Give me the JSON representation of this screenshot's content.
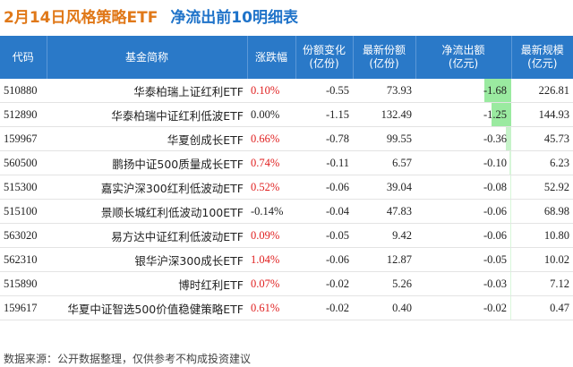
{
  "title": "2月14日风格策略ETF",
  "subtitle": "净流出前10明细表",
  "footer": "数据来源：公开数据整理，仅供参考不构成投资建议",
  "colors": {
    "title": "#e07818",
    "subtitle": "#1f73c9",
    "header_bg": "#2a79c8",
    "positive": "#e02020",
    "bar": "#9aeaa0"
  },
  "chart_data": {
    "type": "table",
    "columns": [
      "代码",
      "基金简称",
      "涨跌幅",
      "份额变化\n(亿份)",
      "最新份额\n(亿份)",
      "净流出额\n(亿元)",
      "最新规模\n(亿元)"
    ],
    "bar_column_max": 1.68,
    "rows": [
      {
        "code": "510880",
        "name": "华泰柏瑞上证红利ETF",
        "change": "0.10%",
        "change_sign": 1,
        "share_change": "-0.55",
        "shares": "73.93",
        "outflow": "-1.68",
        "outflow_value": -1.68,
        "aum": "226.81"
      },
      {
        "code": "512890",
        "name": "华泰柏瑞中证红利低波ETF",
        "change": "0.00%",
        "change_sign": 0,
        "share_change": "-1.15",
        "shares": "132.49",
        "outflow": "-1.25",
        "outflow_value": -1.25,
        "aum": "144.93"
      },
      {
        "code": "159967",
        "name": "华夏创成长ETF",
        "change": "0.66%",
        "change_sign": 1,
        "share_change": "-0.78",
        "shares": "99.55",
        "outflow": "-0.36",
        "outflow_value": -0.36,
        "aum": "45.73"
      },
      {
        "code": "560500",
        "name": "鹏扬中证500质量成长ETF",
        "change": "0.74%",
        "change_sign": 1,
        "share_change": "-0.11",
        "shares": "6.57",
        "outflow": "-0.10",
        "outflow_value": -0.1,
        "aum": "6.23"
      },
      {
        "code": "515300",
        "name": "嘉实沪深300红利低波动ETF",
        "change": "0.52%",
        "change_sign": 1,
        "share_change": "-0.06",
        "shares": "39.04",
        "outflow": "-0.08",
        "outflow_value": -0.08,
        "aum": "52.92"
      },
      {
        "code": "515100",
        "name": "景顺长城红利低波动100ETF",
        "change": "-0.14%",
        "change_sign": -1,
        "share_change": "-0.04",
        "shares": "47.83",
        "outflow": "-0.06",
        "outflow_value": -0.06,
        "aum": "68.98"
      },
      {
        "code": "563020",
        "name": "易方达中证红利低波动ETF",
        "change": "0.09%",
        "change_sign": 1,
        "share_change": "-0.05",
        "shares": "9.42",
        "outflow": "-0.06",
        "outflow_value": -0.06,
        "aum": "10.80"
      },
      {
        "code": "562310",
        "name": "银华沪深300成长ETF",
        "change": "1.04%",
        "change_sign": 1,
        "share_change": "-0.06",
        "shares": "12.87",
        "outflow": "-0.05",
        "outflow_value": -0.05,
        "aum": "10.02"
      },
      {
        "code": "515890",
        "name": "博时红利ETF",
        "change": "0.07%",
        "change_sign": 1,
        "share_change": "-0.02",
        "shares": "5.26",
        "outflow": "-0.03",
        "outflow_value": -0.03,
        "aum": "7.12"
      },
      {
        "code": "159617",
        "name": "华夏中证智选500价值稳健策略ETF",
        "change": "0.61%",
        "change_sign": 1,
        "share_change": "-0.02",
        "shares": "0.40",
        "outflow": "-0.02",
        "outflow_value": -0.02,
        "aum": "0.47"
      }
    ]
  }
}
